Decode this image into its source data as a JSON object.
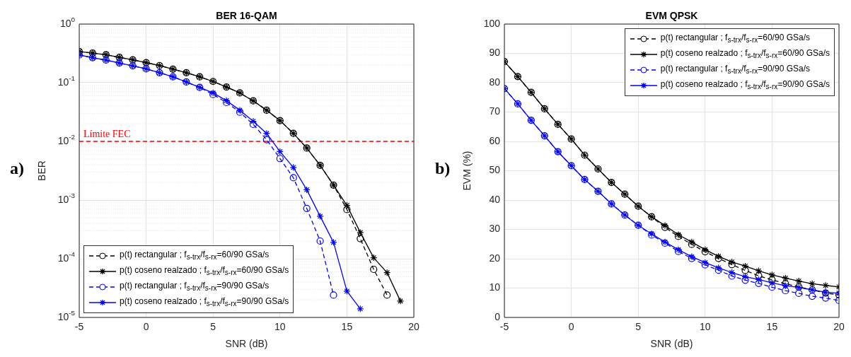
{
  "chart_data": [
    {
      "type": "line",
      "title": "BER 16-QAM",
      "xlabel": "SNR (dB)",
      "ylabel": "BER",
      "log": "y",
      "grid": true,
      "legend": "bottom left",
      "x": [
        -5,
        -4,
        -3,
        -2,
        -1,
        0,
        1,
        2,
        3,
        4,
        5,
        6,
        7,
        8,
        9,
        10,
        11,
        12,
        13,
        14,
        15,
        16,
        17,
        18,
        19
      ],
      "xlim": [
        -5,
        20
      ],
      "xticks": [
        -5,
        0,
        5,
        10,
        15,
        20
      ],
      "ylim": [
        1e-05,
        1
      ],
      "yticks": [
        {
          "value": 1,
          "label": "10$^{0}$"
        },
        {
          "value": 0.1,
          "label": "10$^{-1}$"
        },
        {
          "value": 0.01,
          "label": "10$^{-2}$"
        },
        {
          "value": 0.001,
          "label": "10$^{-3}$"
        },
        {
          "value": 0.0001,
          "label": "10$^{-4}$"
        },
        {
          "value": 1e-05,
          "label": "10$^{-5}$"
        }
      ],
      "series": [
        {
          "name": "p(t) rectangular ; f$_{s-trx}$/f$_{s-rx}$=60/90 GSa/s",
          "color": "#000000",
          "marker": "circle",
          "line_style": "dashed",
          "values": [
            0.34,
            0.32,
            0.3,
            0.27,
            0.245,
            0.22,
            0.196,
            0.17,
            0.148,
            0.126,
            0.105,
            0.0845,
            0.067,
            0.049,
            0.034,
            0.0226,
            0.0137,
            0.0077,
            0.0039,
            0.0018,
            0.00069,
            0.00022,
            6.6e-05,
            2.4e-05,
            null
          ]
        },
        {
          "name": "p(t) coseno realzado ; f$_{s-trx}$/f$_{s-rx}$=60/90 GSa/s",
          "color": "#000000",
          "marker": "cross",
          "line_style": "solid",
          "values": [
            0.34,
            0.32,
            0.3,
            0.27,
            0.245,
            0.22,
            0.196,
            0.17,
            0.148,
            0.126,
            0.105,
            0.0845,
            0.067,
            0.049,
            0.034,
            0.0226,
            0.0137,
            0.0077,
            0.0039,
            0.0018,
            0.00081,
            0.00028,
            0.000104,
            5.8e-05,
            1.9e-05
          ]
        },
        {
          "name": "p(t) rectangular ; f$_{s-trx}$/f$_{s-rx}$=90/90 GSa/s",
          "color": "#0000ff",
          "marker": "circle",
          "line_style": "dashed",
          "values": [
            0.297,
            0.267,
            0.243,
            0.217,
            0.194,
            0.172,
            0.148,
            0.126,
            0.103,
            0.083,
            0.063,
            0.046,
            0.0315,
            0.0195,
            0.0107,
            0.0051,
            0.0024,
            0.00072,
            0.0002,
            2.4e-05,
            null,
            null,
            null,
            null,
            null
          ]
        },
        {
          "name": "p(t) coseno realzado ; f$_{s-trx}$/f$_{s-rx}$=90/90 GSa/s",
          "color": "#0000ff",
          "marker": "cross",
          "line_style": "solid",
          "values": [
            0.297,
            0.267,
            0.243,
            0.217,
            0.194,
            0.172,
            0.148,
            0.126,
            0.103,
            0.083,
            0.067,
            0.0495,
            0.034,
            0.022,
            0.0137,
            0.0067,
            0.0036,
            0.0015,
            0.00053,
            0.00019,
            2.8e-05,
            1.4e-05,
            null,
            null,
            null
          ]
        }
      ],
      "ref_lines": [
        {
          "axis": "y",
          "value": 0.01,
          "label": "Límite FEC",
          "color": "#ff0000",
          "line_style": "dashed"
        }
      ],
      "annotations": [
        "a)"
      ]
    },
    {
      "type": "line",
      "title": "EVM QPSK",
      "xlabel": "SNR (dB)",
      "ylabel": "EVM (%)",
      "grid": true,
      "legend": "top right",
      "x": [
        -5,
        -4,
        -3,
        -2,
        -1,
        0,
        1,
        2,
        3,
        4,
        5,
        6,
        7,
        8,
        9,
        10,
        11,
        12,
        13,
        14,
        15,
        16,
        17,
        18,
        19,
        20
      ],
      "xlim": [
        -5,
        20
      ],
      "xticks": [
        -5,
        0,
        5,
        10,
        15,
        20
      ],
      "ylim": [
        0,
        100
      ],
      "yticks": [
        0,
        10,
        20,
        30,
        40,
        50,
        60,
        70,
        80,
        90,
        100
      ],
      "series": [
        {
          "name": "p(t) rectangular ; f$_{s-trx}$/f$_{s-rx}$=60/90 GSa/s",
          "color": "#000000",
          "marker": "circle",
          "line_style": "dashed",
          "values": [
            87.2,
            82.1,
            76.7,
            71.1,
            65.8,
            60.8,
            55.3,
            50.6,
            46.0,
            42.0,
            37.9,
            34.3,
            30.7,
            27.6,
            24.9,
            22.4,
            20.1,
            18.0,
            16.0,
            14.2,
            12.8,
            11.5,
            10.4,
            9.4,
            8.3,
            7.7
          ]
        },
        {
          "name": "p(t) coseno realzado ; f$_{s-trx}$/f$_{s-rx}$=60/90 GSa/s",
          "color": "#000000",
          "marker": "cross",
          "line_style": "solid",
          "values": [
            87.2,
            82.1,
            76.7,
            71.1,
            65.8,
            60.8,
            55.3,
            50.6,
            46.0,
            42.0,
            37.9,
            34.3,
            31.3,
            28.2,
            25.7,
            23.1,
            20.8,
            18.9,
            17.5,
            15.9,
            14.5,
            13.4,
            12.4,
            11.5,
            10.9,
            10.4
          ]
        },
        {
          "name": "p(t) rectangular ; f$_{s-trx}$/f$_{s-rx}$=90/90 GSa/s",
          "color": "#0000ff",
          "marker": "circle",
          "line_style": "dashed",
          "values": [
            78.0,
            72.8,
            67.2,
            61.9,
            56.5,
            51.7,
            47.0,
            43.0,
            38.7,
            34.9,
            31.4,
            28.1,
            25.3,
            22.5,
            20.1,
            17.9,
            16.1,
            14.1,
            12.7,
            11.6,
            10.3,
            9.1,
            8.2,
            7.2,
            6.6,
            5.8
          ]
        },
        {
          "name": "p(t) coseno realzado ; f$_{s-trx}$/f$_{s-rx}$=90/90 GSa/s",
          "color": "#0000ff",
          "marker": "cross",
          "line_style": "solid",
          "values": [
            78.0,
            72.8,
            67.2,
            61.9,
            56.5,
            51.7,
            47.0,
            43.0,
            38.7,
            34.9,
            31.4,
            28.5,
            25.7,
            23.1,
            20.7,
            18.7,
            16.9,
            15.3,
            13.9,
            12.9,
            11.8,
            10.8,
            10.2,
            9.4,
            8.6,
            8.3
          ]
        }
      ],
      "annotations": [
        "b)"
      ]
    }
  ]
}
